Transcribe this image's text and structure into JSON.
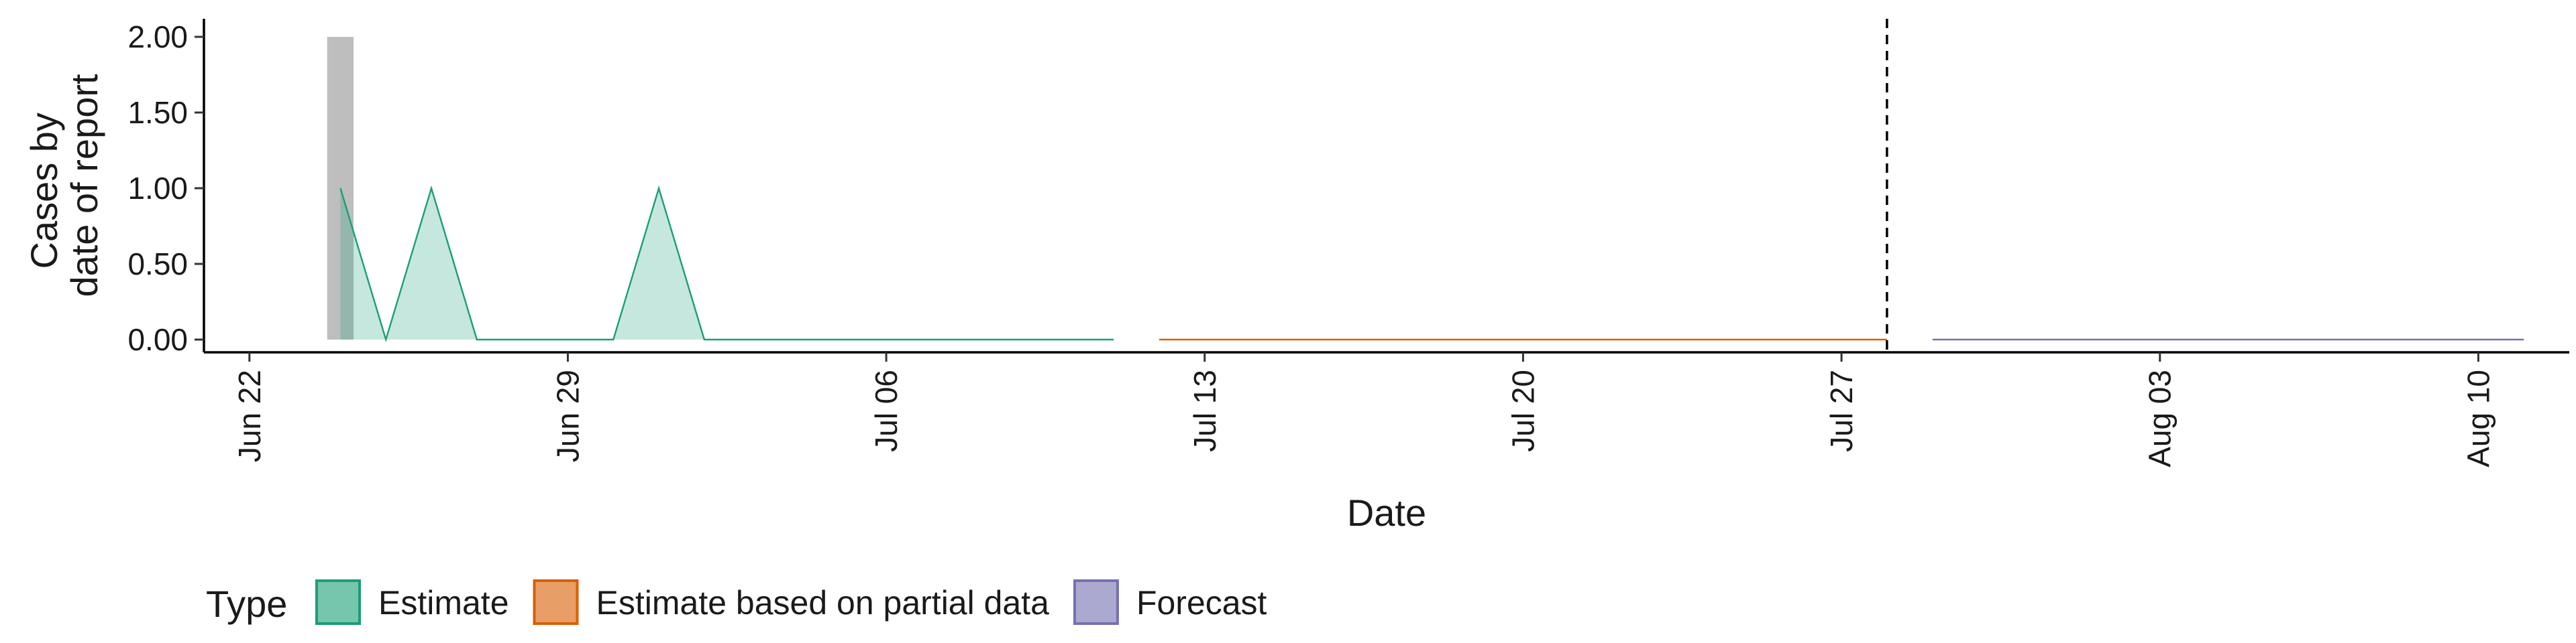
{
  "chart_data": {
    "type": "area",
    "xlabel": "Date",
    "ylabel": [
      "Cases by",
      "date of report"
    ],
    "ylim": [
      0,
      2.0
    ],
    "xlim": [
      "2020-06-21",
      "2020-08-12"
    ],
    "y_ticks": [
      0,
      0.5,
      1.0,
      1.5,
      2.0
    ],
    "y_tick_labels": [
      "0.00",
      "0.50",
      "1.00",
      "1.50",
      "2.00"
    ],
    "x_ticks": [
      "2020-06-22",
      "2020-06-29",
      "2020-07-06",
      "2020-07-13",
      "2020-07-20",
      "2020-07-27",
      "2020-08-03",
      "2020-08-10"
    ],
    "x_tick_labels": [
      "Jun 22",
      "Jun 29",
      "Jul 06",
      "Jul 13",
      "Jul 20",
      "Jul 27",
      "Aug 03",
      "Aug 10"
    ],
    "grid": false,
    "legend_position": "bottom-left",
    "legend_title": "Type",
    "bars": [
      {
        "x": "2020-06-24",
        "value": 2.0,
        "color": "#bebebe"
      }
    ],
    "series": [
      {
        "name": "Estimate",
        "color": "#1b9e77",
        "fill": "#1b9e77",
        "points": [
          [
            "2020-06-24",
            1
          ],
          [
            "2020-06-25",
            0
          ],
          [
            "2020-06-26",
            1
          ],
          [
            "2020-06-27",
            0
          ],
          [
            "2020-06-28",
            0
          ],
          [
            "2020-06-29",
            0
          ],
          [
            "2020-06-30",
            0
          ],
          [
            "2020-07-01",
            1
          ],
          [
            "2020-07-02",
            0
          ],
          [
            "2020-07-03",
            0
          ],
          [
            "2020-07-04",
            0
          ],
          [
            "2020-07-05",
            0
          ],
          [
            "2020-07-06",
            0
          ],
          [
            "2020-07-07",
            0
          ],
          [
            "2020-07-08",
            0
          ],
          [
            "2020-07-09",
            0
          ],
          [
            "2020-07-10",
            0
          ],
          [
            "2020-07-11",
            0
          ]
        ]
      },
      {
        "name": "Estimate based on partial data",
        "color": "#d95f02",
        "fill": "#d95f02",
        "points": [
          [
            "2020-07-12",
            0
          ],
          [
            "2020-07-28",
            0
          ]
        ]
      },
      {
        "name": "Forecast",
        "color": "#7570b3",
        "fill": "#7570b3",
        "points": [
          [
            "2020-07-29",
            0
          ],
          [
            "2020-08-11",
            0
          ]
        ]
      }
    ],
    "vline": "2020-07-28"
  }
}
